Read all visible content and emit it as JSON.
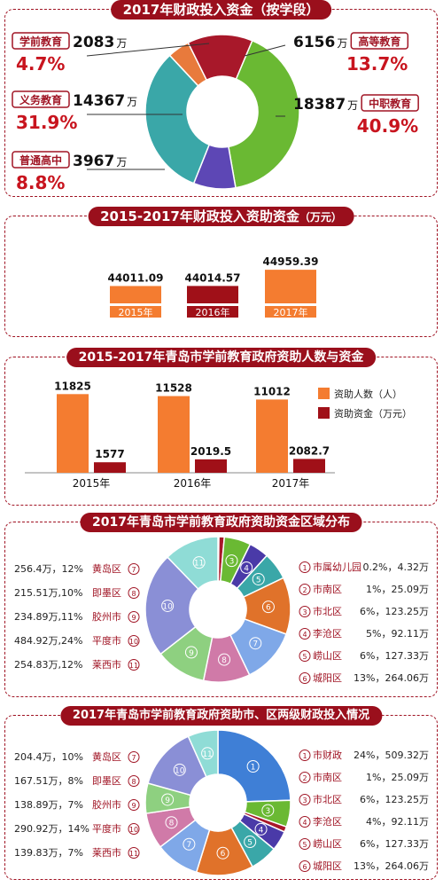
{
  "panel1": {
    "title": "2017年财政投入资金（按学段）",
    "chart_data": {
      "type": "pie",
      "title": "2017年财政投入资金（按学段）",
      "unit": "万",
      "slices": [
        {
          "name": "学前教育",
          "value": 2083,
          "percent": "4.7%",
          "color": "#e87a3c"
        },
        {
          "name": "高等教育",
          "value": 6156,
          "percent": "13.7%",
          "color": "#a8182a"
        },
        {
          "name": "中职教育",
          "value": 18387,
          "percent": "40.9%",
          "color": "#6ab933"
        },
        {
          "name": "普通高中",
          "value": 3967,
          "percent": "8.8%",
          "color": "#5d47b5"
        },
        {
          "name": "义务教育",
          "value": 14367,
          "percent": "31.9%",
          "color": "#3aa7a8"
        }
      ]
    },
    "labels": {
      "preschool": {
        "name": "学前教育",
        "value": "2083",
        "unit": "万",
        "pct": "4.7%"
      },
      "compulsory": {
        "name": "义务教育",
        "value": "14367",
        "unit": "万",
        "pct": "31.9%"
      },
      "highschool": {
        "name": "普通高中",
        "value": "3967",
        "unit": "万",
        "pct": "8.8%"
      },
      "higher": {
        "name": "高等教育",
        "value": "6156",
        "unit": "万",
        "pct": "13.7%"
      },
      "vocational": {
        "name": "中职教育",
        "value": "18387",
        "unit": "万",
        "pct": "40.9%"
      }
    }
  },
  "panel2": {
    "title": "2015-2017年财政投入资助资金",
    "title_unit": "（万元）",
    "chart_data": {
      "type": "bar",
      "categories": [
        "2015年",
        "2016年",
        "2017年"
      ],
      "values": [
        44011.09,
        44014.57,
        44959.39
      ],
      "value_labels": [
        "44011.09",
        "44014.57",
        "44959.39"
      ],
      "colors": [
        "#f47c30",
        "#a01018",
        "#f47c30"
      ],
      "ylim": [
        0,
        46000
      ]
    }
  },
  "panel3": {
    "title": "2015-2017年青岛市学前教育政府资助人数与资金",
    "chart_data": {
      "type": "bar",
      "categories": [
        "2015年",
        "2016年",
        "2017年"
      ],
      "series": [
        {
          "name": "资助人数（人）",
          "values": [
            11825,
            11528,
            11012
          ],
          "labels": [
            "11825",
            "11528",
            "11012"
          ],
          "color": "#f47c30"
        },
        {
          "name": "资助资金（万元）",
          "values": [
            1577,
            2019.5,
            2082.7
          ],
          "labels": [
            "1577",
            "2019.5",
            "2082.7"
          ],
          "color": "#a01018"
        }
      ],
      "ylim": [
        0,
        12000
      ]
    }
  },
  "panel4": {
    "title": "2017年青岛市学前教育政府资助资金区域分布",
    "chart_data": {
      "type": "pie",
      "slices": [
        {
          "num": "1",
          "value": 4.32,
          "color": "#f2f2f2"
        },
        {
          "num": "2",
          "value": 25.09,
          "color": "#a8182a"
        },
        {
          "num": "3",
          "value": 123.25,
          "color": "#6ab933"
        },
        {
          "num": "4",
          "value": 92.11,
          "color": "#4a3aa8"
        },
        {
          "num": "5",
          "value": 127.33,
          "color": "#3aa7a8"
        },
        {
          "num": "6",
          "value": 264.06,
          "color": "#e0722a"
        },
        {
          "num": "7",
          "value": 256.4,
          "color": "#7fa8e8"
        },
        {
          "num": "8",
          "value": 215.51,
          "color": "#d07aa8"
        },
        {
          "num": "9",
          "value": 234.89,
          "color": "#8ed080"
        },
        {
          "num": "10",
          "value": 484.92,
          "color": "#8a8fd6"
        },
        {
          "num": "11",
          "value": 254.83,
          "color": "#8fdcd6"
        }
      ]
    },
    "left": [
      {
        "text": "256.4万，12%",
        "name": "黄岛区",
        "num": "7"
      },
      {
        "text": "215.51万,10%",
        "name": "即墨区",
        "num": "8"
      },
      {
        "text": "234.89万,11%",
        "name": "胶州市",
        "num": "9"
      },
      {
        "text": "484.92万,24%",
        "name": "平度市",
        "num": "10"
      },
      {
        "text": "254.83万,12%",
        "name": "莱西市",
        "num": "11"
      }
    ],
    "right": [
      {
        "num": "1",
        "name": "市属幼儿园",
        "text": "0.2%，4.32万"
      },
      {
        "num": "2",
        "name": "市南区",
        "text": "1%，25.09万"
      },
      {
        "num": "3",
        "name": "市北区",
        "text": "6%，123.25万"
      },
      {
        "num": "4",
        "name": "李沧区",
        "text": "5%，92.11万"
      },
      {
        "num": "5",
        "name": "崂山区",
        "text": "6%，127.33万"
      },
      {
        "num": "6",
        "name": "城阳区",
        "text": "13%，264.06万"
      }
    ]
  },
  "panel5": {
    "title": "2017年青岛市学前教育政府资助市、区两级财政投入情况",
    "chart_data": {
      "type": "pie",
      "slices": [
        {
          "num": "1",
          "value": 509.32,
          "color": "#3f7fd6"
        },
        {
          "num": "3",
          "value": 123.25,
          "color": "#6ab933"
        },
        {
          "num": "2",
          "value": 25.09,
          "color": "#a8182a"
        },
        {
          "num": "4",
          "value": 92.11,
          "color": "#4a3aa8"
        },
        {
          "num": "5",
          "value": 127.33,
          "color": "#3aa7a8"
        },
        {
          "num": "6",
          "value": 264.06,
          "color": "#e0722a"
        },
        {
          "num": "7",
          "value": 204.4,
          "color": "#7fa8e8"
        },
        {
          "num": "8",
          "value": 167.51,
          "color": "#d07aa8"
        },
        {
          "num": "9",
          "value": 138.89,
          "color": "#8ed080"
        },
        {
          "num": "10",
          "value": 290.92,
          "color": "#8a8fd6"
        },
        {
          "num": "11",
          "value": 139.83,
          "color": "#8fdcd6"
        }
      ]
    },
    "left": [
      {
        "text": "204.4万，10%",
        "name": "黄岛区",
        "num": "7"
      },
      {
        "text": "167.51万，8%",
        "name": "即墨区",
        "num": "8"
      },
      {
        "text": "138.89万，7%",
        "name": "胶州市",
        "num": "9"
      },
      {
        "text": "290.92万，14%",
        "name": "平度市",
        "num": "10"
      },
      {
        "text": "139.83万，7%",
        "name": "莱西市",
        "num": "11"
      }
    ],
    "right": [
      {
        "num": "1",
        "name": "市财政",
        "text": "24%，509.32万"
      },
      {
        "num": "2",
        "name": "市南区",
        "text": "1%，25.09万"
      },
      {
        "num": "3",
        "name": "市北区",
        "text": "6%，123.25万"
      },
      {
        "num": "4",
        "name": "李沧区",
        "text": "4%，92.11万"
      },
      {
        "num": "5",
        "name": "崂山区",
        "text": "6%，127.33万"
      },
      {
        "num": "6",
        "name": "城阳区",
        "text": "13%，264.06万"
      }
    ]
  }
}
